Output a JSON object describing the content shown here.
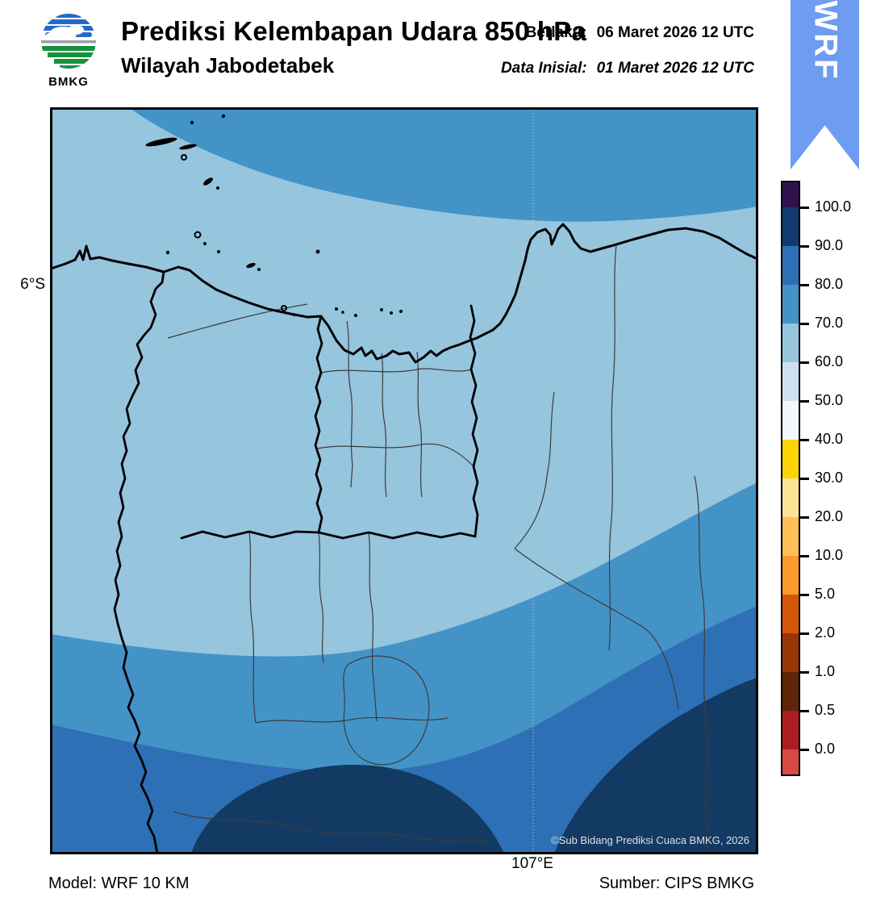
{
  "header": {
    "logo_text": "BMKG",
    "title": "Prediksi Kelembapan Udara 850 hPa",
    "subtitle": "Wilayah Jabodetabek",
    "valid_label": "Berlaku:",
    "valid_value": "06 Maret 2026 12 UTC",
    "init_label": "Data Inisial:",
    "init_value": "01 Maret 2026 12 UTC",
    "ribbon_label": "WRF"
  },
  "map": {
    "y_axis_label": "6°S",
    "x_axis_label": "107°E",
    "copyright": "©Sub Bidang Prediksi Cuaca BMKG, 2026",
    "visible_humidity_bands_percent": [
      {
        "range": "60-70",
        "color": "#96c5de",
        "where": "large central area incl. Jakarta and coastal sea"
      },
      {
        "range": "70-80",
        "color": "#4493c7",
        "where": "band across top (offshore north) and band across south"
      },
      {
        "range": "80-90",
        "color": "#2e70b5",
        "where": "far south band"
      },
      {
        "range": "90-100",
        "color": "#133a63",
        "where": "bottom-centre and bottom-right blobs"
      }
    ]
  },
  "colorbar": {
    "tick_labels": [
      "100.0",
      "90.0",
      "80.0",
      "70.0",
      "60.0",
      "50.0",
      "40.0",
      "30.0",
      "20.0",
      "10.0",
      "5.0",
      "2.0",
      "1.0",
      "0.5",
      "0.0"
    ],
    "segment_colors_top_to_bottom": [
      "#30124e",
      "#123a6d",
      "#2e70b5",
      "#4493c7",
      "#96c5de",
      "#cfe1f0",
      "#f3f7fb",
      "#fdd405",
      "#fde395",
      "#febf57",
      "#fd9a2e",
      "#d65708",
      "#983605",
      "#5f2508",
      "#ac1c21",
      "#d94a42"
    ]
  },
  "footer": {
    "model": "Model: WRF 10 KM",
    "source": "Sumber: CIPS BMKG"
  },
  "colors": {
    "band_60_70": "#96c5de",
    "band_70_80": "#4493c7",
    "band_80_90": "#2e70b5",
    "band_90_100": "#133a63",
    "ribbon": "#6d9cf0",
    "grid": "#c9c9c9",
    "logo_blue": "#2569c8",
    "logo_green": "#15923e",
    "logo_gray": "#9aa0a6"
  }
}
